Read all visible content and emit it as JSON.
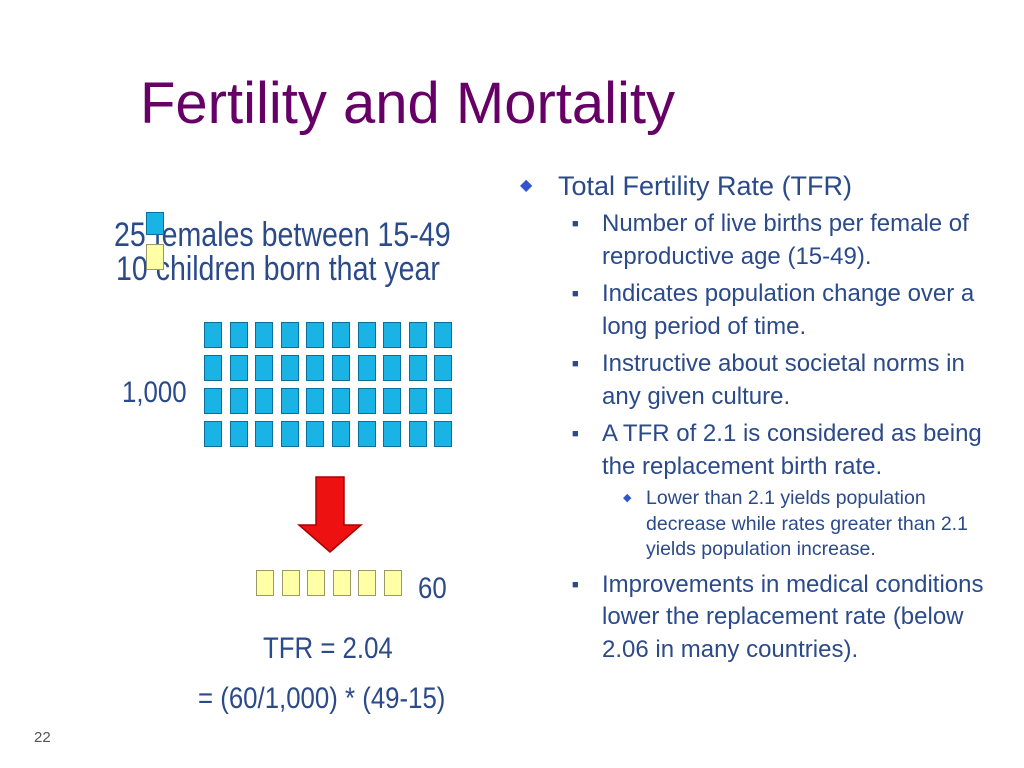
{
  "slide": {
    "title": "Fertility and Mortality",
    "page_number": "22"
  },
  "diagram": {
    "line1": "25 females between 15-49",
    "line2": "10 children born that year",
    "grid_label": "1,000",
    "result_label": "60",
    "tfr": "TFR = 2.04",
    "formula": "= (60/1,000) * (49-15)",
    "blue_grid": {
      "rows": 4,
      "cols": 10
    },
    "yellow_count": 6,
    "colors": {
      "blue": "#19b3e6",
      "yellow": "#ffffa6",
      "arrow": "#ee1111",
      "title": "#660066",
      "text": "#2b4a8a"
    }
  },
  "bullets": {
    "main": "Total Fertility Rate (TFR)",
    "items": [
      "Number of live births per female of reproductive age (15-49).",
      "Indicates population change over a long period of time.",
      "Instructive about societal norms in any given culture.",
      "A TFR of 2.1 is considered as being the replacement birth rate."
    ],
    "sub_item": "Lower than 2.1 yields population decrease while rates greater than 2.1 yields population increase.",
    "last_item": "Improvements in medical conditions lower the replacement rate (below 2.06 in many countries)."
  },
  "icons": {
    "main_bullet": "diamond-icon",
    "sub_bullet": "square-icon",
    "sub_sub_bullet": "diamond-icon",
    "arrow": "down-arrow-icon"
  }
}
